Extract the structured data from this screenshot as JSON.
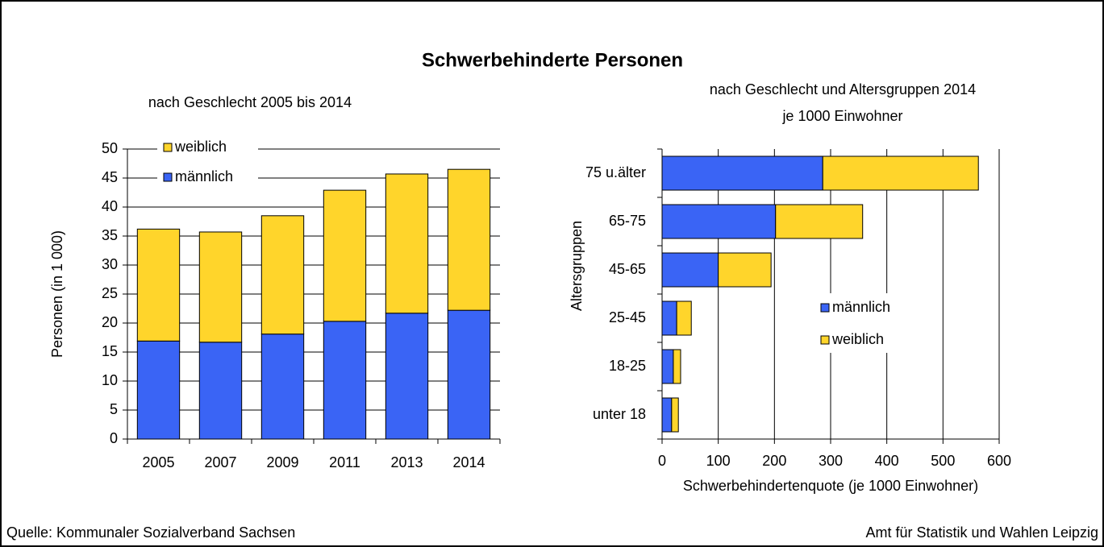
{
  "title": "Schwerbehinderte Personen",
  "chart_data": [
    {
      "type": "bar",
      "subtitle": "nach Geschlecht 2005 bis 2014",
      "y_label": "Personen (in 1 000)",
      "categories": [
        "2005",
        "2007",
        "2009",
        "2011",
        "2013",
        "2014"
      ],
      "series": [
        {
          "name": "männlich",
          "color": "#3a64f5",
          "values": [
            16.9,
            16.7,
            18.1,
            20.3,
            21.7,
            22.2
          ]
        },
        {
          "name": "weiblich",
          "color": "#ffd52b",
          "values": [
            19.3,
            19.0,
            20.4,
            22.6,
            24.0,
            24.3
          ]
        }
      ],
      "stacked": true,
      "ylim": [
        0,
        50
      ],
      "yticks": [
        0,
        5,
        10,
        15,
        20,
        25,
        30,
        35,
        40,
        45,
        50
      ],
      "grid": true,
      "legend": "top-left"
    },
    {
      "type": "barh",
      "subtitle": [
        "nach Geschlecht und Altersgruppen 2014",
        "je 1000 Einwohner"
      ],
      "y_label": "Altersgruppen",
      "x_label": "Schwerbehindertenquote (je 1000 Einwohner)",
      "categories": [
        "75 u.älter",
        "65-75",
        "45-65",
        "25-45",
        "18-25",
        "unter 18"
      ],
      "series": [
        {
          "name": "männlich",
          "color": "#3a64f5",
          "values": [
            286,
            202,
            100,
            26,
            20,
            17
          ]
        },
        {
          "name": "weiblich",
          "color": "#ffd52b",
          "values": [
            277,
            155,
            94,
            26,
            13,
            12
          ]
        }
      ],
      "stacked": true,
      "xlim": [
        0,
        600
      ],
      "xticks": [
        0,
        100,
        200,
        300,
        400,
        500,
        600
      ],
      "grid": true,
      "legend": "center-right"
    }
  ],
  "footer": {
    "source": "Quelle: Kommunaler Sozialverband Sachsen",
    "publisher": "Amt für Statistik und Wahlen Leipzig"
  }
}
